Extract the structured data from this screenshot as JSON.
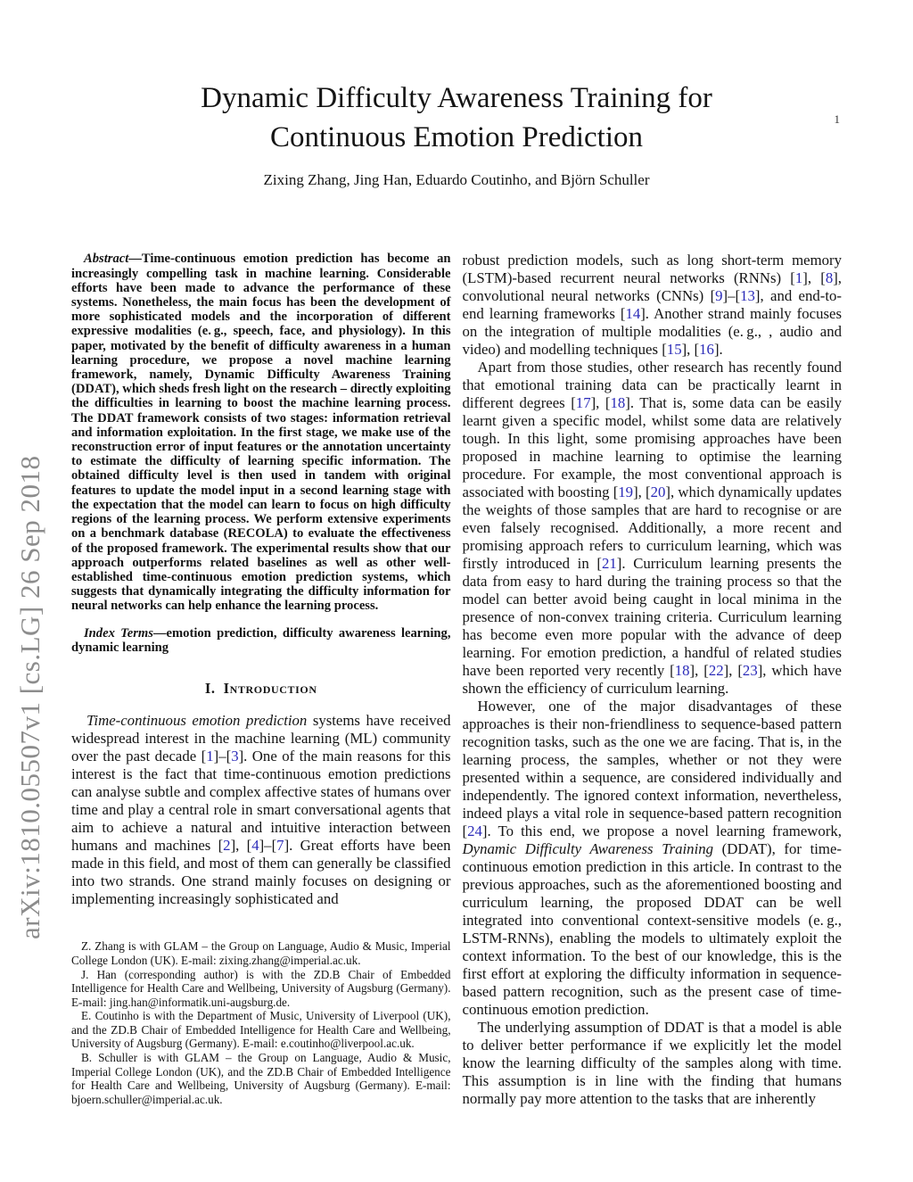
{
  "page": {
    "number": "1"
  },
  "sidebar": {
    "arxiv_text": "arXiv:1810.05507v1  [cs.LG]  26 Sep 2018"
  },
  "header": {
    "title_line1": "Dynamic Difficulty Awareness Training for",
    "title_line2": "Continuous Emotion Prediction",
    "authors": "Zixing Zhang, Jing Han, Eduardo Coutinho, and Björn Schuller"
  },
  "abstract": {
    "label": "Abstract",
    "text": "—Time-continuous emotion prediction has become an increasingly compelling task in machine learning. Considerable efforts have been made to advance the performance of these systems. Nonetheless, the main focus has been the development of more sophisticated models and the incorporation of different expressive modalities (e. g., speech, face, and physiology). In this paper, motivated by the benefit of difficulty awareness in a human learning procedure, we propose a novel machine learning framework, namely, Dynamic Difficulty Awareness Training (DDAT), which sheds fresh light on the research – directly exploiting the difficulties in learning to boost the machine learning process. The DDAT framework consists of two stages: information retrieval and information exploitation. In the first stage, we make use of the reconstruction error of input features or the annotation uncertainty to estimate the difficulty of learning specific information. The obtained difficulty level is then used in tandem with original features to update the model input in a second learning stage with the expectation that the model can learn to focus on high difficulty regions of the learning process. We perform extensive experiments on a benchmark database (RECOLA) to evaluate the effectiveness of the proposed framework. The experimental results show that our approach outperforms related baselines as well as other well-established time-continuous emotion prediction systems, which suggests that dynamically integrating the difficulty information for neural networks can help enhance the learning process."
  },
  "index_terms": {
    "label": "Index Terms",
    "text": "—emotion prediction, difficulty awareness learning, dynamic learning"
  },
  "section1": {
    "number": "I.",
    "title": "Introduction"
  },
  "left_column": {
    "paragraphs": [
      "*Time-continuous emotion prediction* systems have received widespread interest in the machine learning (ML) community over the past decade [1]–[3]. One of the main reasons for this interest is the fact that time-continuous emotion predictions can analyse subtle and complex affective states of humans over time and play a central role in smart conversational agents that aim to achieve a natural and intuitive interaction between humans and machines [2], [4]–[7]. Great efforts have been made in this field, and most of them can generally be classified into two strands. One strand mainly focuses on designing or implementing increasingly sophisticated and"
    ]
  },
  "right_column": {
    "paragraphs": [
      "robust prediction models, such as long short-term memory (LSTM)-based recurrent neural networks (RNNs) [1], [8], convolutional neural networks (CNNs) [9]–[13], and end-to-end learning frameworks [14]. Another strand mainly focuses on the integration of multiple modalities (e. g., , audio and video) and modelling techniques [15], [16].",
      "Apart from those studies, other research has recently found that emotional training data can be practically learnt in different degrees [17], [18]. That is, some data can be easily learnt given a specific model, whilst some data are relatively tough. In this light, some promising approaches have been proposed in machine learning to optimise the learning procedure. For example, the most conventional approach is associated with boosting [19], [20], which dynamically updates the weights of those samples that are hard to recognise or are even falsely recognised. Additionally, a more recent and promising approach refers to curriculum learning, which was firstly introduced in [21]. Curriculum learning presents the data from easy to hard during the training process so that the model can better avoid being caught in local minima in the presence of non-convex training criteria. Curriculum learning has become even more popular with the advance of deep learning. For emotion prediction, a handful of related studies have been reported very recently [18], [22], [23], which have shown the efficiency of curriculum learning.",
      "However, one of the major disadvantages of these approaches is their non-friendliness to sequence-based pattern recognition tasks, such as the one we are facing. That is, in the learning process, the samples, whether or not they were presented within a sequence, are considered individually and independently. The ignored context information, nevertheless, indeed plays a vital role in sequence-based pattern recognition [24]. To this end, we propose a novel learning framework, *Dynamic Difficulty Awareness Training* (DDAT), for time-continuous emotion prediction in this article. In contrast to the previous approaches, such as the aforementioned boosting and curriculum learning, the proposed DDAT can be well integrated into conventional context-sensitive models (e. g., LSTM-RNNs), enabling the models to ultimately exploit the context information. To the best of our knowledge, this is the first effort at exploring the difficulty information in sequence-based pattern recognition, such as the present case of time-continuous emotion prediction.",
      "The underlying assumption of DDAT is that a model is able to deliver better performance if we explicitly let the model know the learning difficulty of the samples along with time. This assumption is in line with the finding that humans normally pay more attention to the tasks that are inherently"
    ]
  },
  "footnotes": [
    "Z. Zhang is with GLAM – the Group on Language, Audio & Music, Imperial College London (UK). E-mail: zixing.zhang@imperial.ac.uk.",
    "J. Han (corresponding author) is with the ZD.B Chair of Embedded Intelligence for Health Care and Wellbeing, University of Augsburg (Germany). E-mail: jing.han@informatik.uni-augsburg.de.",
    "E. Coutinho is with the Department of Music, University of Liverpool (UK), and the ZD.B Chair of Embedded Intelligence for Health Care and Wellbeing, University of Augsburg (Germany). E-mail: e.coutinho@liverpool.ac.uk.",
    "B. Schuller is with GLAM – the Group on Language, Audio & Music, Imperial College London (UK), and the ZD.B Chair of Embedded Intelligence for Health Care and Wellbeing, University of Augsburg (Germany). E-mail: bjoern.schuller@imperial.ac.uk."
  ],
  "colors": {
    "citation_blue": "#2a2ab8",
    "sidebar_gray": "#8c8c8c"
  }
}
